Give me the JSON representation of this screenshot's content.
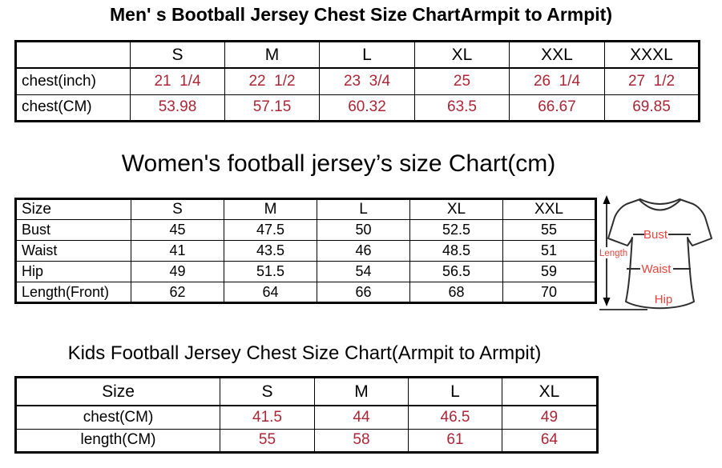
{
  "colors": {
    "table_border": "#000000",
    "men_value_red": "#ab2635",
    "kids_value_red": "#ab2635",
    "women_value_color": "#000000",
    "shirt_label_red": "#e8453c"
  },
  "chart_data": [
    {
      "type": "table",
      "title": "Men' s Bootball Jersey Chest Size ChartArmpit to Armpit)",
      "columns": [
        "",
        "S",
        "M",
        "L",
        "XL",
        "XXL",
        "XXXL"
      ],
      "rows": [
        {
          "label": "chest(inch)",
          "values": [
            "21  1/4",
            "22  1/2",
            "23  3/4",
            "25",
            "26  1/4",
            "27  1/2"
          ]
        },
        {
          "label": "chest(CM)",
          "values": [
            "53.98",
            "57.15",
            "60.32",
            "63.5",
            "66.67",
            "69.85"
          ]
        }
      ],
      "value_color": "#ab2635",
      "label_color": "#000000"
    },
    {
      "type": "table",
      "title": "Women's football jersey’s size Chart(cm)",
      "columns": [
        "Size",
        "S",
        "M",
        "L",
        "XL",
        "XXL"
      ],
      "rows": [
        {
          "label": "Bust",
          "values": [
            "45",
            "47.5",
            "50",
            "52.5",
            "55"
          ]
        },
        {
          "label": "Waist",
          "values": [
            "41",
            "43.5",
            "46",
            "48.5",
            "51"
          ]
        },
        {
          "label": "Hip",
          "values": [
            "49",
            "51.5",
            "54",
            "56.5",
            "59"
          ]
        },
        {
          "label": "Length(Front)",
          "values": [
            "62",
            "64",
            "66",
            "68",
            "70"
          ]
        }
      ],
      "value_color": "#000000",
      "label_color": "#000000"
    },
    {
      "type": "table",
      "title": "Kids Football Jersey Chest Size Chart(Armpit to Armpit)",
      "columns": [
        "Size",
        "S",
        "M",
        "L",
        "XL"
      ],
      "rows": [
        {
          "label": "chest(CM)",
          "values": [
            "41.5",
            "44",
            "46.5",
            "49"
          ]
        },
        {
          "label": "length(CM)",
          "values": [
            "55",
            "58",
            "61",
            "64"
          ]
        }
      ],
      "value_color": "#ab2635",
      "label_color": "#000000"
    }
  ],
  "shirt_diagram": {
    "labels": {
      "length": "Length",
      "bust": "Bust",
      "waist": "Waist",
      "hip": "Hip"
    }
  }
}
